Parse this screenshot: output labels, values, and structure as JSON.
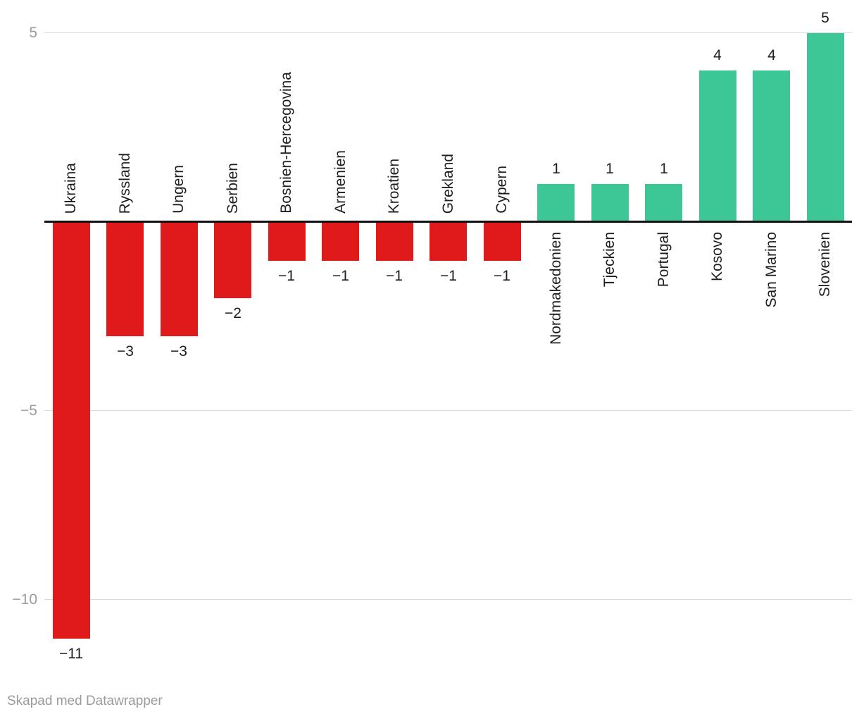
{
  "chart_data": {
    "type": "bar",
    "categories": [
      "Ukraina",
      "Ryssland",
      "Ungern",
      "Serbien",
      "Bosnien-Hercegovina",
      "Armenien",
      "Kroatien",
      "Grekland",
      "Cypern",
      "Nordmakedonien",
      "Tjeckien",
      "Portugal",
      "Kosovo",
      "San Marino",
      "Slovenien"
    ],
    "values": [
      -11,
      -3,
      -3,
      -2,
      -1,
      -1,
      -1,
      -1,
      -1,
      1,
      1,
      1,
      4,
      4,
      5
    ],
    "value_labels": [
      "−11",
      "−3",
      "−3",
      "−2",
      "−1",
      "−1",
      "−1",
      "−1",
      "−1",
      "1",
      "1",
      "1",
      "4",
      "4",
      "5"
    ],
    "title": "",
    "xlabel": "",
    "ylabel": "",
    "ylim": [
      -11.5,
      5.5
    ],
    "y_ticks": [
      {
        "value": 5,
        "label": "5"
      },
      {
        "value": -5,
        "label": "−5"
      },
      {
        "value": -10,
        "label": "−10"
      }
    ],
    "grid": "horizontal-lines-at-ticks-plus-bold-zero-line",
    "legend": "none",
    "colors": {
      "positive": "#3ec796",
      "negative": "#e0191b"
    }
  },
  "footer": {
    "attribution": "Skapad med Datawrapper"
  }
}
